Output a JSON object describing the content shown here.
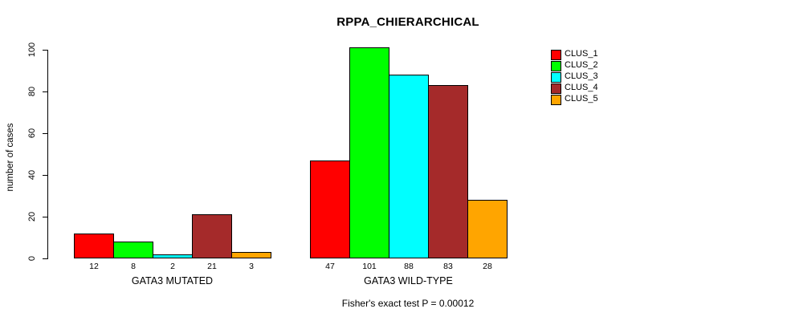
{
  "page": {
    "background_color": "#ffffff",
    "text_color": "#000000"
  },
  "chart_data": {
    "type": "bar",
    "title": "RPPA_CHIERARCHICAL",
    "xlabel": "",
    "ylabel": "number of cases",
    "ylim": [
      0,
      100
    ],
    "y_ticks": [
      0,
      20,
      40,
      60,
      80,
      100
    ],
    "grid": false,
    "categories": [
      "GATA3 MUTATED",
      "GATA3 WILD-TYPE"
    ],
    "series": [
      {
        "name": "CLUS_1",
        "color": "#ff0000",
        "values": [
          12,
          47
        ]
      },
      {
        "name": "CLUS_2",
        "color": "#00ff00",
        "values": [
          8,
          101
        ]
      },
      {
        "name": "CLUS_3",
        "color": "#00ffff",
        "values": [
          2,
          88
        ]
      },
      {
        "name": "CLUS_4",
        "color": "#a52a2a",
        "values": [
          21,
          83
        ]
      },
      {
        "name": "CLUS_5",
        "color": "#ffa500",
        "values": [
          3,
          28
        ]
      }
    ],
    "bar_value_labels_shown": true,
    "bar_border_color": "#000000",
    "legend": {
      "position": "right",
      "entries": [
        "CLUS_1",
        "CLUS_2",
        "CLUS_3",
        "CLUS_4",
        "CLUS_5"
      ]
    },
    "footnote": "Fisher's exact test P = 0.00012"
  }
}
